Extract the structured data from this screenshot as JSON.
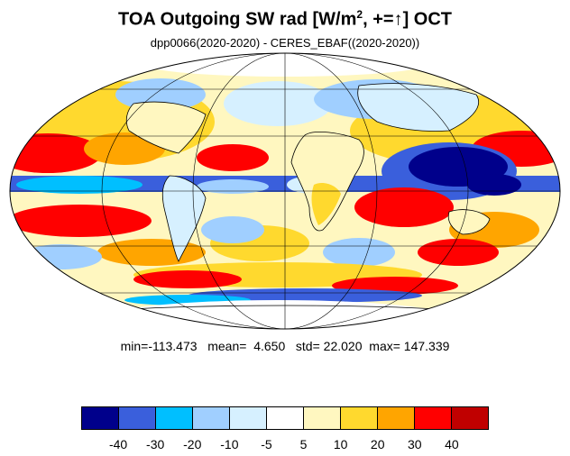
{
  "title": {
    "main": "TOA Outgoing SW rad [W/m",
    "superscript": "2",
    "suffix": ", +=↑] OCT"
  },
  "subtitle": "dpp0066(2020-2020) - CERES_EBAF((2020-2020))",
  "stats": {
    "min_label": "min=",
    "min": "-113.473",
    "mean_label": "mean=",
    "mean": "4.650",
    "std_label": "std=",
    "std": "22.020",
    "max_label": "max=",
    "max": "147.339"
  },
  "colorbar": {
    "colors": [
      "#00008b",
      "#3a5fdc",
      "#00bfff",
      "#a0cfff",
      "#d6f0ff",
      "#ffffff",
      "#fff7c0",
      "#ffd92e",
      "#ffa500",
      "#ff0000",
      "#c00000"
    ],
    "tick_labels": [
      "-40",
      "-30",
      "-20",
      "-10",
      "-5",
      "5",
      "10",
      "20",
      "30",
      "40"
    ]
  },
  "map": {
    "projection": "mollweide",
    "field": "difference model minus CERES_EBAF"
  }
}
